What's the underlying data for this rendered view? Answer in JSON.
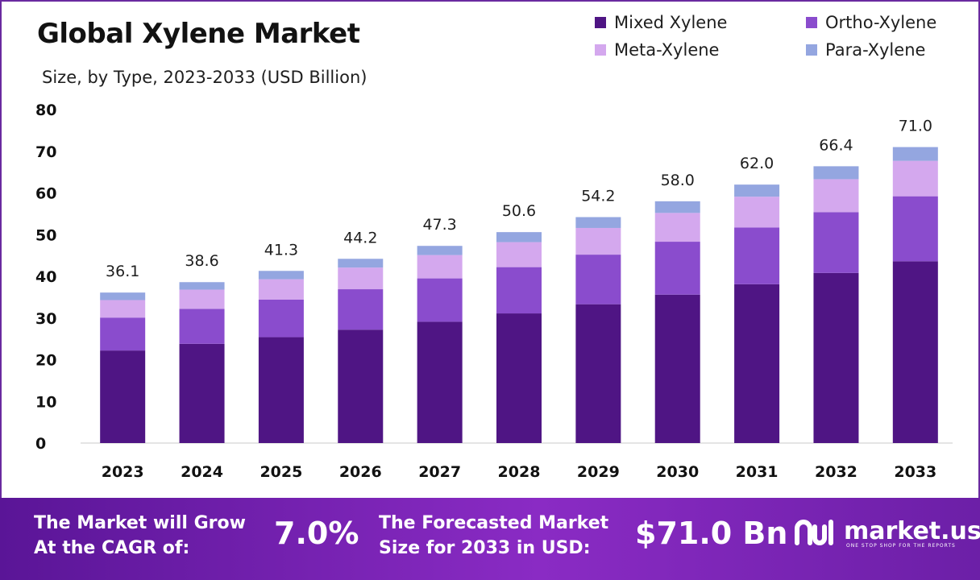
{
  "title": "Global Xylene Market",
  "subtitle": "Size, by Type, 2023-2033 (USD Billion)",
  "legend": [
    {
      "label": "Mixed Xylene",
      "color": "#4f1584"
    },
    {
      "label": "Ortho-Xylene",
      "color": "#8a4ccd"
    },
    {
      "label": "Meta-Xylene",
      "color": "#d4a8ee"
    },
    {
      "label": "Para-Xylene",
      "color": "#94a6e0"
    }
  ],
  "chart_data": {
    "type": "bar",
    "stacked": true,
    "categories": [
      "2023",
      "2024",
      "2025",
      "2026",
      "2027",
      "2028",
      "2029",
      "2030",
      "2031",
      "2032",
      "2033"
    ],
    "series": [
      {
        "name": "Mixed Xylene",
        "color": "#4f1584",
        "values": [
          22.2,
          23.8,
          25.4,
          27.2,
          29.1,
          31.1,
          33.3,
          35.6,
          38.1,
          40.8,
          43.6
        ]
      },
      {
        "name": "Ortho-Xylene",
        "color": "#8a4ccd",
        "values": [
          7.9,
          8.4,
          9.0,
          9.7,
          10.4,
          11.1,
          11.9,
          12.7,
          13.6,
          14.6,
          15.6
        ]
      },
      {
        "name": "Meta-Xylene",
        "color": "#d4a8ee",
        "values": [
          4.2,
          4.6,
          4.9,
          5.2,
          5.6,
          6.0,
          6.4,
          6.9,
          7.4,
          7.9,
          8.5
        ]
      },
      {
        "name": "Para-Xylene",
        "color": "#94a6e0",
        "values": [
          1.8,
          1.8,
          2.0,
          2.1,
          2.2,
          2.4,
          2.6,
          2.8,
          2.9,
          3.1,
          3.3
        ]
      }
    ],
    "totals": [
      "36.1",
      "38.6",
      "41.3",
      "44.2",
      "47.3",
      "50.6",
      "54.2",
      "58.0",
      "62.0",
      "66.4",
      "71.0"
    ],
    "yticks": [
      "0",
      "10",
      "20",
      "30",
      "40",
      "50",
      "60",
      "70",
      "80"
    ],
    "ylim": [
      0,
      80
    ],
    "grid": false,
    "legend_position": "top-right"
  },
  "footer": {
    "cagr_label_line1": "The Market will Grow",
    "cagr_label_line2": "At the CAGR of:",
    "cagr_value": "7.0%",
    "forecast_label_line1": "The Forecasted Market",
    "forecast_label_line2": "Size for 2033 in USD:",
    "forecast_value": "$71.0 Bn",
    "brand": "market.us",
    "brand_tagline": "ONE STOP SHOP FOR THE REPORTS"
  }
}
